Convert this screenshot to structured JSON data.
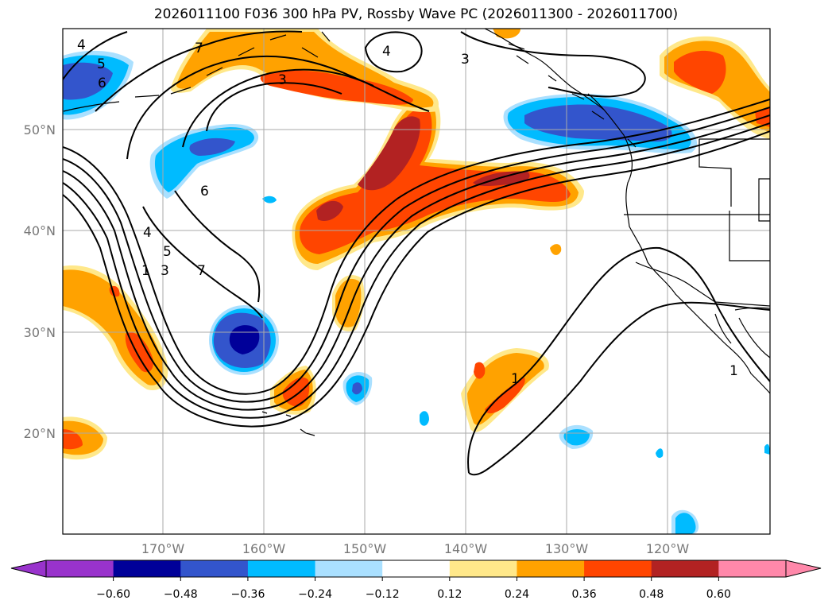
{
  "title": "2026011100 F036 300 hPa PV, Rossby Wave PC (2026011300 - 2026011700)",
  "lat_labels": [
    "50°N",
    "40°N",
    "30°N",
    "20°N"
  ],
  "lon_labels": [
    "170°W",
    "160°W",
    "150°W",
    "140°W",
    "130°W",
    "120°W"
  ],
  "colorbar": {
    "ticks": [
      "−0.60",
      "−0.48",
      "−0.36",
      "−0.24",
      "−0.12",
      "0.12",
      "0.24",
      "0.36",
      "0.48",
      "0.60"
    ],
    "colors": [
      "#9933cc",
      "#000099",
      "#3355cc",
      "#00bbff",
      "#aae0ff",
      "#ffffff",
      "#ffe88a",
      "#ffa200",
      "#ff4500",
      "#b22222",
      "#ff88aa"
    ]
  },
  "contour_labels": [
    "4",
    "5",
    "6",
    "7",
    "3",
    "4",
    "3",
    "6",
    "4",
    "5",
    "7",
    "1",
    "3",
    "1",
    "1"
  ],
  "colors": {
    "pv_line": "#000000",
    "grid": "#aaaaaa",
    "coast": "#000000"
  }
}
